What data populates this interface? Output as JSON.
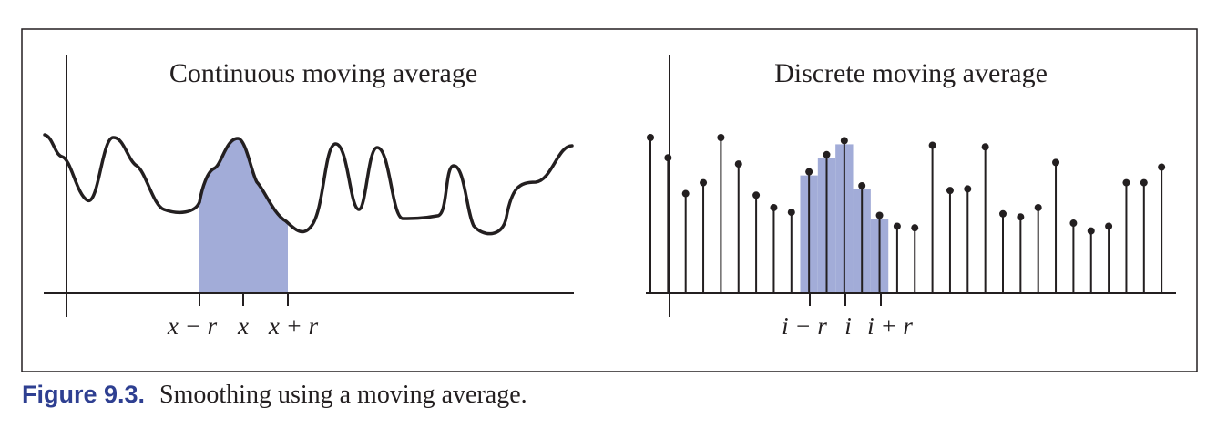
{
  "figure": {
    "colors": {
      "ink": "#231f20",
      "fill": "#a2acd8",
      "caption": "#2e3f91"
    },
    "left_panel": {
      "title": "Continuous moving average",
      "ticks": [
        {
          "id": "x-minus-r",
          "label": "x − r"
        },
        {
          "id": "x",
          "label": "x"
        },
        {
          "id": "x-plus-r",
          "label": "x + r"
        }
      ]
    },
    "right_panel": {
      "title": "Discrete moving average",
      "ticks": [
        {
          "id": "i-minus-r",
          "label": "i − r"
        },
        {
          "id": "i",
          "label": "i"
        },
        {
          "id": "i-plus-r",
          "label": "i + r"
        }
      ],
      "samples": [
        1.0,
        0.87,
        0.64,
        0.71,
        1.0,
        0.83,
        0.63,
        0.55,
        0.52,
        0.78,
        0.89,
        0.98,
        0.69,
        0.5,
        0.43,
        0.42,
        0.95,
        0.66,
        0.67,
        0.94,
        0.51,
        0.49,
        0.55,
        0.84,
        0.45,
        0.4,
        0.43,
        0.71,
        0.71,
        0.81
      ],
      "averaged": [
        0.78,
        0.89,
        0.98,
        0.69,
        0.5
      ]
    },
    "caption": {
      "label": "Figure 9.3.",
      "text": "Smoothing using a moving average."
    }
  }
}
